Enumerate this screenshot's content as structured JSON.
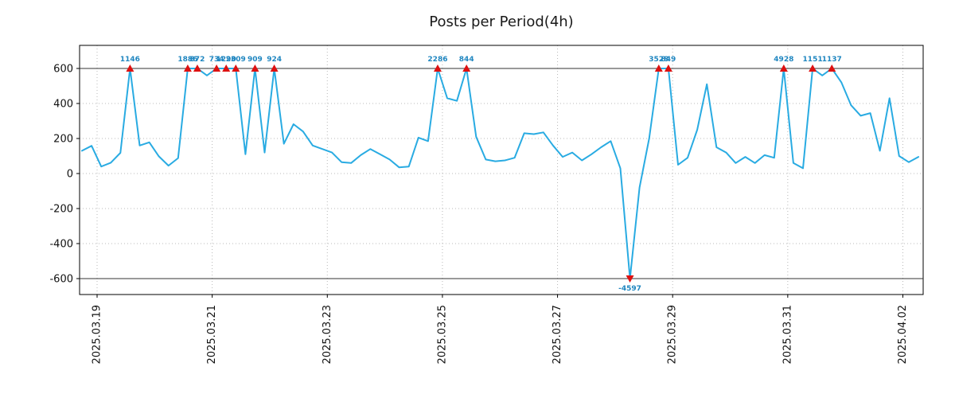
{
  "title": "Posts per Period(4h)",
  "colors": {
    "line": "#29abe2",
    "marker": "#dd1111",
    "annotation": "#1f86c0",
    "grid": "#b8b8b8",
    "axis": "#000000",
    "clip_line": "#333333"
  },
  "chart_data": {
    "type": "line",
    "title": "Posts per Period(4h)",
    "period_hours": 4,
    "clip_value": 600,
    "ylim": [
      -691,
      732
    ],
    "grid": true,
    "y_ticks": [
      -600,
      -400,
      -200,
      0,
      200,
      400,
      600
    ],
    "x_ticks": [
      "2025.03.19",
      "2025.03.21",
      "2025.03.23",
      "2025.03.25",
      "2025.03.27",
      "2025.03.29",
      "2025.03.31",
      "2025.04.02"
    ],
    "peak_annotations": [
      "1146",
      "1886",
      "872",
      "734",
      "1290",
      "2309",
      "909",
      "924",
      "2286",
      "844",
      "-4597",
      "3528",
      "849",
      "4928",
      "1151",
      "1137"
    ],
    "values": [
      130,
      158,
      40,
      62,
      118,
      1146,
      160,
      178,
      98,
      45,
      88,
      1886,
      872,
      560,
      734,
      1290,
      2309,
      110,
      909,
      120,
      924,
      170,
      282,
      240,
      160,
      140,
      120,
      65,
      60,
      105,
      140,
      110,
      80,
      35,
      40,
      205,
      185,
      2286,
      430,
      415,
      844,
      210,
      80,
      70,
      75,
      90,
      230,
      225,
      235,
      160,
      95,
      120,
      75,
      110,
      150,
      185,
      30,
      -4597,
      -80,
      200,
      3528,
      849,
      50,
      90,
      250,
      510,
      150,
      120,
      60,
      95,
      60,
      105,
      90,
      4928,
      60,
      30,
      1151,
      560,
      1137,
      520,
      390,
      330,
      345,
      130,
      430,
      100,
      65,
      95
    ]
  }
}
